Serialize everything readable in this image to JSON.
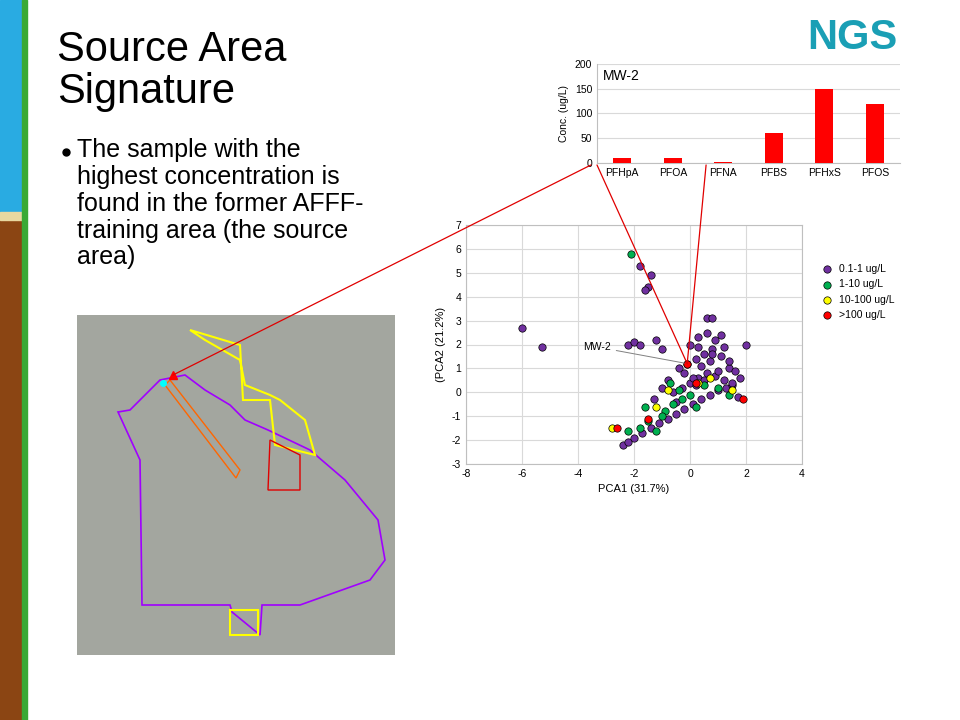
{
  "slide": {
    "title": "Source Area Signature",
    "bullet": "The sample with the highest concentration is found in the former AFFF-training area (the source area)",
    "logo": "NGS"
  },
  "chart_data": [
    {
      "type": "bar",
      "title": "MW-2",
      "y_label": "Conc. (ug/L)",
      "categories": [
        "PFHpA",
        "PFOA",
        "PFNA",
        "PFBS",
        "PFHxS",
        "PFOS"
      ],
      "values": [
        10,
        10,
        2,
        60,
        150,
        120
      ],
      "color": "#ff0000",
      "ylim": [
        0,
        200
      ],
      "yticks": [
        0,
        50,
        100,
        150,
        200
      ],
      "grid": true
    },
    {
      "type": "scatter",
      "x_label": "PCA1 (31.7%)",
      "y_label": "(PCA2 (21.2%)",
      "xlim": [
        -8,
        4
      ],
      "xticks": [
        -8,
        -6,
        -4,
        -2,
        0,
        2,
        4
      ],
      "ylim": [
        -3,
        7
      ],
      "yticks": [
        -3,
        -2,
        -1,
        0,
        1,
        2,
        3,
        4,
        5,
        6,
        7
      ],
      "grid": true,
      "legend": "right",
      "marker": "circle",
      "annotations": [
        {
          "text": "MW-2",
          "x": -0.1,
          "y": 1.2
        }
      ],
      "series": [
        {
          "name": "0.1-1 ug/L",
          "color": "#7030a0",
          "x": [
            -6.0,
            -5.3,
            -1.8,
            -1.4,
            -1.5,
            -1.6,
            -2.2,
            -2.0,
            -1.8,
            -1.2,
            -1.0,
            0.6,
            0.8,
            2.0,
            -2.4,
            -2.2,
            -2.0,
            -1.7,
            -1.4,
            -1.1,
            -0.8,
            -0.5,
            -0.2,
            0.1,
            0.4,
            0.7,
            1.0,
            1.3,
            1.5,
            -0.6,
            -0.3,
            0.0,
            0.3,
            0.6,
            0.9,
            1.2,
            1.5,
            1.8,
            -0.4,
            -0.1,
            0.2,
            0.5,
            0.8,
            1.1,
            1.4,
            0.0,
            0.3,
            0.6,
            0.9,
            1.2,
            -0.2,
            0.1,
            0.4,
            0.7,
            1.0,
            0.2,
            0.5,
            0.8,
            1.1,
            1.6,
            -0.8,
            -1.0,
            -1.3,
            -0.5,
            1.7,
            1.4,
            0.3
          ],
          "y": [
            2.7,
            1.9,
            5.3,
            4.9,
            4.4,
            4.3,
            2.0,
            2.1,
            2.0,
            2.2,
            1.8,
            3.1,
            3.1,
            2.0,
            -2.2,
            -2.1,
            -1.9,
            -1.7,
            -1.5,
            -1.3,
            -1.1,
            -0.9,
            -0.7,
            -0.5,
            -0.3,
            -0.1,
            0.1,
            0.2,
            0.3,
            0.0,
            0.2,
            0.4,
            0.6,
            0.8,
            0.7,
            0.5,
            0.4,
            0.6,
            1.0,
            1.2,
            1.4,
            1.6,
            1.8,
            1.5,
            1.0,
            2.0,
            2.3,
            2.5,
            2.2,
            1.9,
            0.8,
            0.6,
            1.1,
            1.3,
            0.9,
            0.3,
            0.5,
            1.6,
            2.4,
            0.9,
            0.5,
            0.2,
            -0.3,
            -0.4,
            -0.2,
            1.3,
            1.9
          ]
        },
        {
          "name": "1-10 ug/L",
          "color": "#00b050",
          "x": [
            -2.1,
            -1.8,
            -1.5,
            -1.2,
            -0.9,
            -0.6,
            -0.3,
            0.0,
            -1.6,
            -1.0,
            -0.4,
            0.5,
            1.0,
            1.4,
            -2.2,
            -0.7,
            0.2
          ],
          "y": [
            5.8,
            -1.5,
            -1.2,
            -1.6,
            -0.8,
            -0.5,
            -0.3,
            -0.1,
            -0.6,
            -1.0,
            0.1,
            0.3,
            0.2,
            -0.1,
            -1.6,
            0.4,
            -0.6
          ]
        },
        {
          "name": "10-100 ug/L",
          "color": "#ffff00",
          "x": [
            -2.8,
            -1.2,
            0.3,
            0.7,
            -0.8,
            1.5
          ],
          "y": [
            -1.5,
            -0.6,
            0.4,
            0.6,
            0.1,
            0.1
          ]
        },
        {
          "name": ">100 ug/L",
          "color": "#ff0000",
          "x": [
            -2.6,
            -0.1,
            -1.5,
            0.2,
            1.9
          ],
          "y": [
            -1.5,
            1.2,
            -1.1,
            0.4,
            -0.3
          ]
        }
      ]
    }
  ]
}
